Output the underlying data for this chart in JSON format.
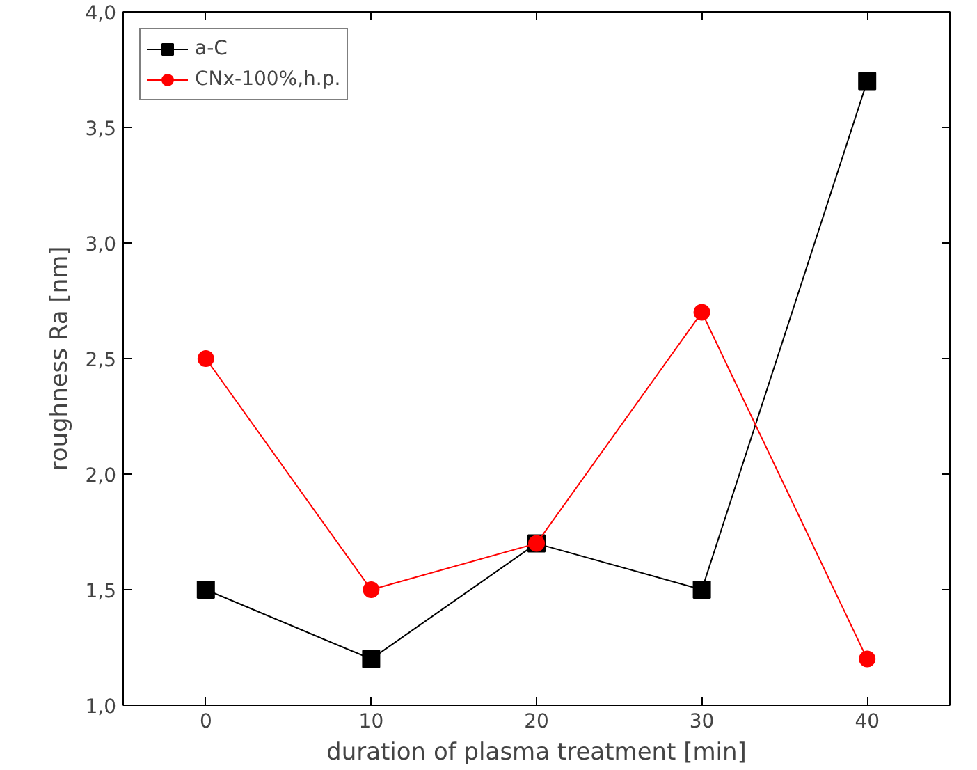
{
  "chart_data": {
    "type": "line",
    "xlabel": "duration of plasma treatment [min]",
    "ylabel": "roughness Ra [nm]",
    "x": [
      0,
      10,
      20,
      30,
      40
    ],
    "series": [
      {
        "name": "a-C",
        "color": "#000000",
        "marker": "square",
        "values": [
          1.5,
          1.2,
          1.7,
          1.5,
          3.7
        ]
      },
      {
        "name": "CNx-100%,h.p.",
        "color": "#ff0000",
        "marker": "circle",
        "values": [
          2.5,
          1.5,
          1.7,
          2.7,
          1.2
        ]
      }
    ],
    "xlim": [
      -5,
      45
    ],
    "xticks": [
      0,
      10,
      20,
      30,
      40
    ],
    "ylim": [
      1.0,
      4.0
    ],
    "yticks": [
      {
        "value": 1.0,
        "label": "1,0"
      },
      {
        "value": 1.5,
        "label": "1,5"
      },
      {
        "value": 2.0,
        "label": "2,0"
      },
      {
        "value": 2.5,
        "label": "2,5"
      },
      {
        "value": 3.0,
        "label": "3,0"
      },
      {
        "value": 3.5,
        "label": "3,5"
      },
      {
        "value": 4.0,
        "label": "4,0"
      }
    ],
    "grid": false,
    "legend": "top left",
    "line_style": "solid"
  }
}
